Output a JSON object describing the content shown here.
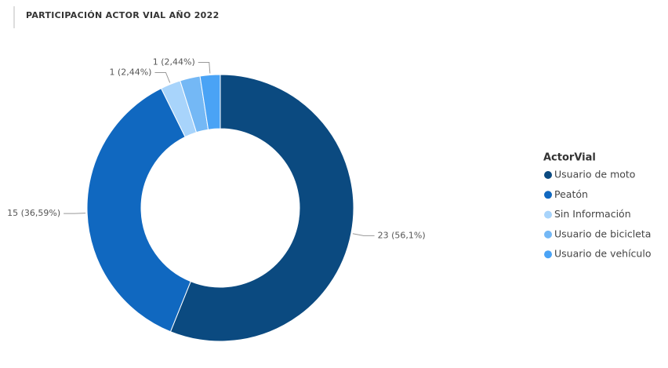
{
  "chart_data": {
    "type": "donut",
    "title": "PARTICIPACIÓN ACTOR VIAL AÑO 2022",
    "legend_title": "ActorVial",
    "legend": "right",
    "categories": [
      "Usuario de moto",
      "Peatón",
      "Sin Información",
      "Usuario de bicicleta",
      "Usuario de vehículo"
    ],
    "values": [
      23,
      15,
      1,
      1,
      1
    ],
    "value_labels": [
      "23 (56,1%)",
      "15 (36,59%)",
      "1 (2,44%)",
      null,
      "1 (2,44%)"
    ],
    "colors": [
      "#0b4a80",
      "#1068c0",
      "#a8d4fb",
      "#74b8f5",
      "#4aa3f5"
    ]
  }
}
